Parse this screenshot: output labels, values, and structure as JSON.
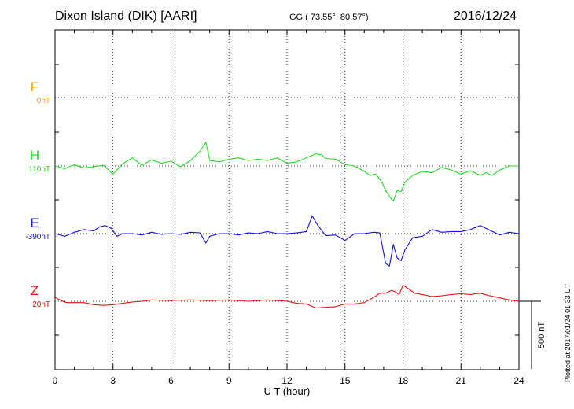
{
  "header": {
    "station": "Dixon Island (DIK)  [AARI]",
    "coords": "GG ( 73.55°,  80.57°)",
    "date": "2016/12/24"
  },
  "side_note": "Plotted at 2017/01/24 01:33 UT",
  "colors": {
    "F": "#f0a000",
    "H": "#22dd22",
    "E": "#1010ee",
    "Z": "#ee1111"
  },
  "chart_data": {
    "type": "line",
    "xlabel": "U T (hour)",
    "xlim": [
      0,
      24
    ],
    "xticks": [
      "0",
      "3",
      "6",
      "9",
      "12",
      "15",
      "18",
      "21",
      "24"
    ],
    "scale_bar": "500 nT",
    "grid": true,
    "series": [
      {
        "name": "F",
        "baseline": "0nT",
        "x": [],
        "y": []
      },
      {
        "name": "H",
        "baseline": "110nT",
        "x": [
          0,
          0.5,
          1,
          1.5,
          2,
          2.5,
          3,
          3.5,
          4,
          4.5,
          5,
          5.5,
          6,
          6.5,
          7,
          7.5,
          7.8,
          8,
          8.5,
          9,
          9.5,
          10,
          10.5,
          11,
          11.5,
          12,
          12.5,
          13,
          13.5,
          13.8,
          14,
          14.5,
          15,
          15.5,
          16,
          16.3,
          16.6,
          16.9,
          17.1,
          17.3,
          17.5,
          17.7,
          17.9,
          18.1,
          18.5,
          19,
          19.5,
          20,
          20.5,
          21,
          21.5,
          22,
          22.3,
          22.6,
          23,
          23.5,
          24
        ],
        "y": [
          0,
          -20,
          10,
          -15,
          -5,
          5,
          -60,
          15,
          60,
          5,
          45,
          20,
          35,
          -5,
          40,
          110,
          175,
          40,
          30,
          50,
          60,
          40,
          50,
          40,
          60,
          20,
          30,
          60,
          90,
          80,
          55,
          50,
          10,
          0,
          -40,
          -70,
          -60,
          -120,
          -180,
          -225,
          -260,
          -180,
          -190,
          -120,
          -70,
          -40,
          -50,
          -10,
          -30,
          -60,
          -35,
          -70,
          -50,
          -70,
          -30,
          0,
          0
        ]
      },
      {
        "name": "E",
        "baseline": "-390nT",
        "x": [
          0,
          0.5,
          1,
          1.5,
          2,
          2.3,
          2.6,
          2.9,
          3.2,
          3.5,
          4,
          4.5,
          5,
          5.5,
          6,
          6.5,
          7,
          7.5,
          7.8,
          8,
          8.5,
          9,
          9.5,
          10,
          10.5,
          11,
          11.5,
          12,
          12.5,
          13,
          13.3,
          13.6,
          14,
          14.5,
          15,
          15.5,
          16,
          16.5,
          16.8,
          17.1,
          17.3,
          17.5,
          17.7,
          17.9,
          18.1,
          18.5,
          19,
          19.5,
          20,
          20.5,
          21,
          21.5,
          22,
          22.5,
          23,
          23.5,
          24
        ],
        "y": [
          0,
          -20,
          10,
          30,
          20,
          50,
          60,
          40,
          -20,
          0,
          0,
          -10,
          10,
          -5,
          0,
          -5,
          10,
          5,
          -70,
          -20,
          0,
          0,
          -10,
          5,
          0,
          15,
          0,
          0,
          5,
          15,
          130,
          60,
          -15,
          -10,
          -50,
          0,
          0,
          10,
          5,
          -220,
          -240,
          -80,
          -180,
          -200,
          -120,
          -30,
          -20,
          30,
          10,
          15,
          15,
          30,
          60,
          25,
          -10,
          10,
          0
        ]
      },
      {
        "name": "Z",
        "baseline": "20nT",
        "x": [
          0,
          0.3,
          0.6,
          1,
          1.5,
          2,
          2.5,
          3,
          3.5,
          4,
          4.5,
          5,
          6,
          7,
          8,
          9,
          10,
          11,
          12,
          12.5,
          13,
          13.5,
          14,
          14.5,
          15,
          15.5,
          16,
          16.5,
          16.8,
          17.1,
          17.4,
          17.6,
          17.8,
          18,
          18.3,
          18.6,
          19,
          19.5,
          20,
          20.5,
          21,
          21.5,
          22,
          22.5,
          23,
          23.5,
          24
        ],
        "y": [
          30,
          5,
          -10,
          -10,
          -10,
          -25,
          -30,
          -25,
          -15,
          -5,
          0,
          10,
          5,
          10,
          5,
          10,
          0,
          10,
          0,
          -15,
          -20,
          -50,
          -45,
          -40,
          -20,
          -20,
          -10,
          30,
          60,
          60,
          80,
          70,
          50,
          120,
          90,
          60,
          50,
          35,
          40,
          50,
          55,
          50,
          60,
          40,
          25,
          10,
          0
        ]
      }
    ]
  }
}
